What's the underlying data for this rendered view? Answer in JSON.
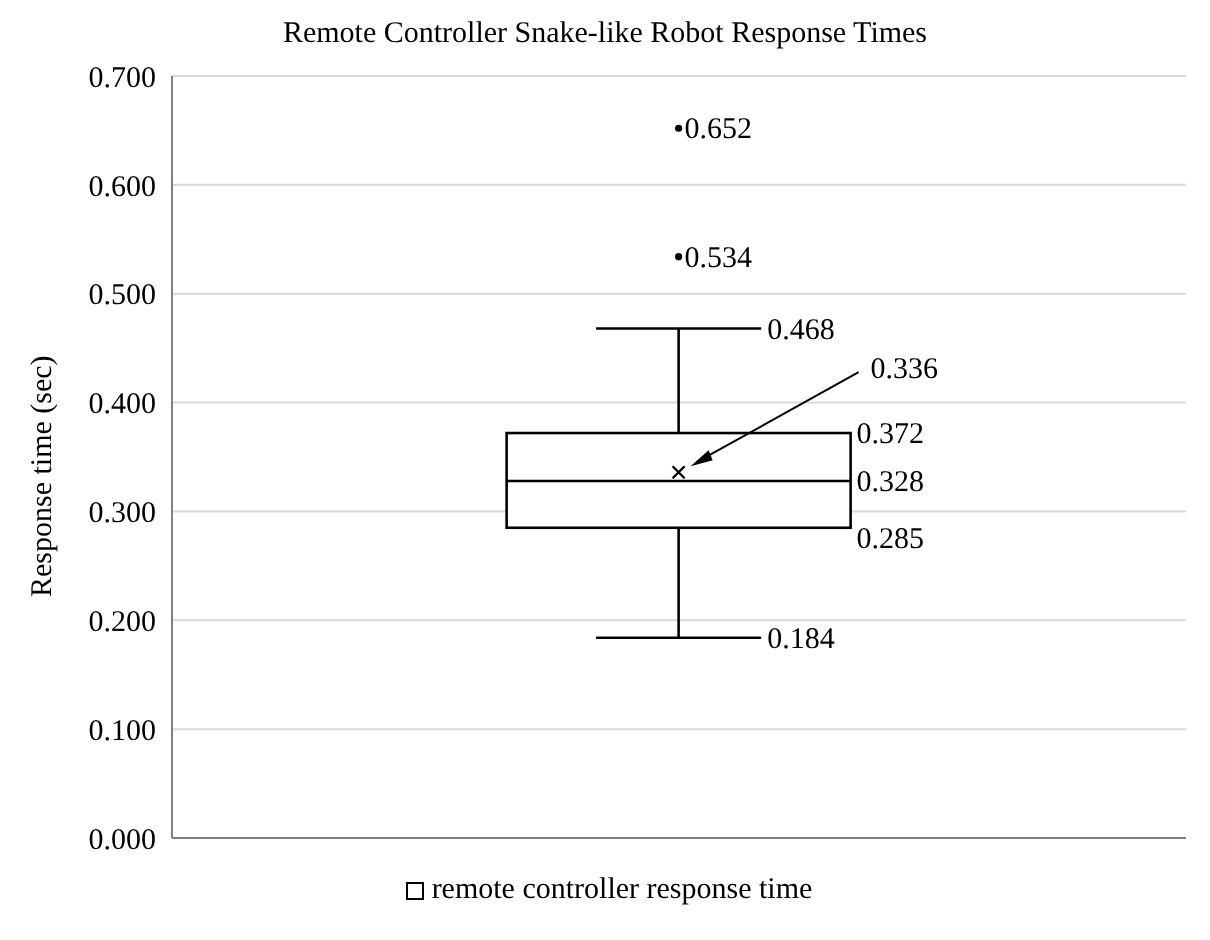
{
  "chart_data": {
    "type": "box",
    "title": "Remote Controller Snake-like Robot Response Times",
    "ylabel": "Response time (sec)",
    "categories": [
      null
    ],
    "series": [
      {
        "name": "remote controller response time",
        "color": "#000000",
        "boxes": [
          {
            "low": 0.184,
            "q1": 0.285,
            "median": 0.328,
            "q3": 0.372,
            "high": 0.468,
            "mean": 0.336,
            "outliers": [
              0.534,
              0.652
            ]
          }
        ]
      }
    ],
    "ylim": [
      0,
      0.7
    ],
    "yticks": [
      {
        "value": 0,
        "label": "0.000"
      },
      {
        "value": 0.1,
        "label": "0.100"
      },
      {
        "value": 0.2,
        "label": "0.200"
      },
      {
        "value": 0.3,
        "label": "0.300"
      },
      {
        "value": 0.4,
        "label": "0.400"
      },
      {
        "value": 0.5,
        "label": "0.500"
      },
      {
        "value": 0.6,
        "label": "0.600"
      },
      {
        "value": 0.7,
        "label": "0.700"
      }
    ],
    "annotations": [
      "0.534",
      "0.652",
      "0.468",
      "0.336",
      "0.372",
      "0.328",
      "0.285",
      "0.184"
    ],
    "grid": "y",
    "legend": "bottom"
  }
}
